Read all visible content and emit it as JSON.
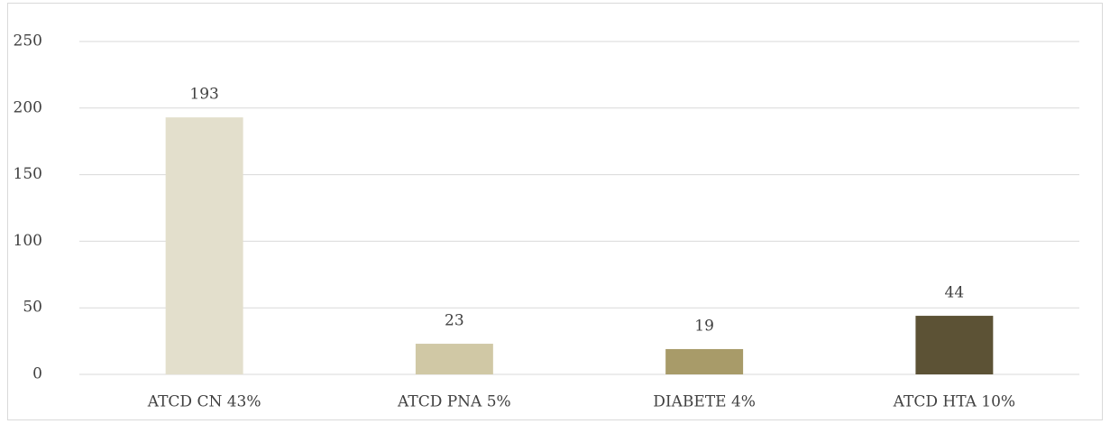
{
  "chart_data": {
    "type": "bar",
    "categories": [
      "ATCD CN 43%",
      "ATCD PNA 5%",
      "DIABETE 4%",
      "ATCD HTA 10%"
    ],
    "values": [
      193,
      23,
      19,
      44
    ],
    "colors": [
      "#e3dfcc",
      "#d0c8a5",
      "#a89b69",
      "#5c5235"
    ],
    "ylim": [
      0,
      250
    ],
    "yticks": [
      0,
      50,
      100,
      150,
      200,
      250
    ],
    "grid": true,
    "data_labels": true
  }
}
